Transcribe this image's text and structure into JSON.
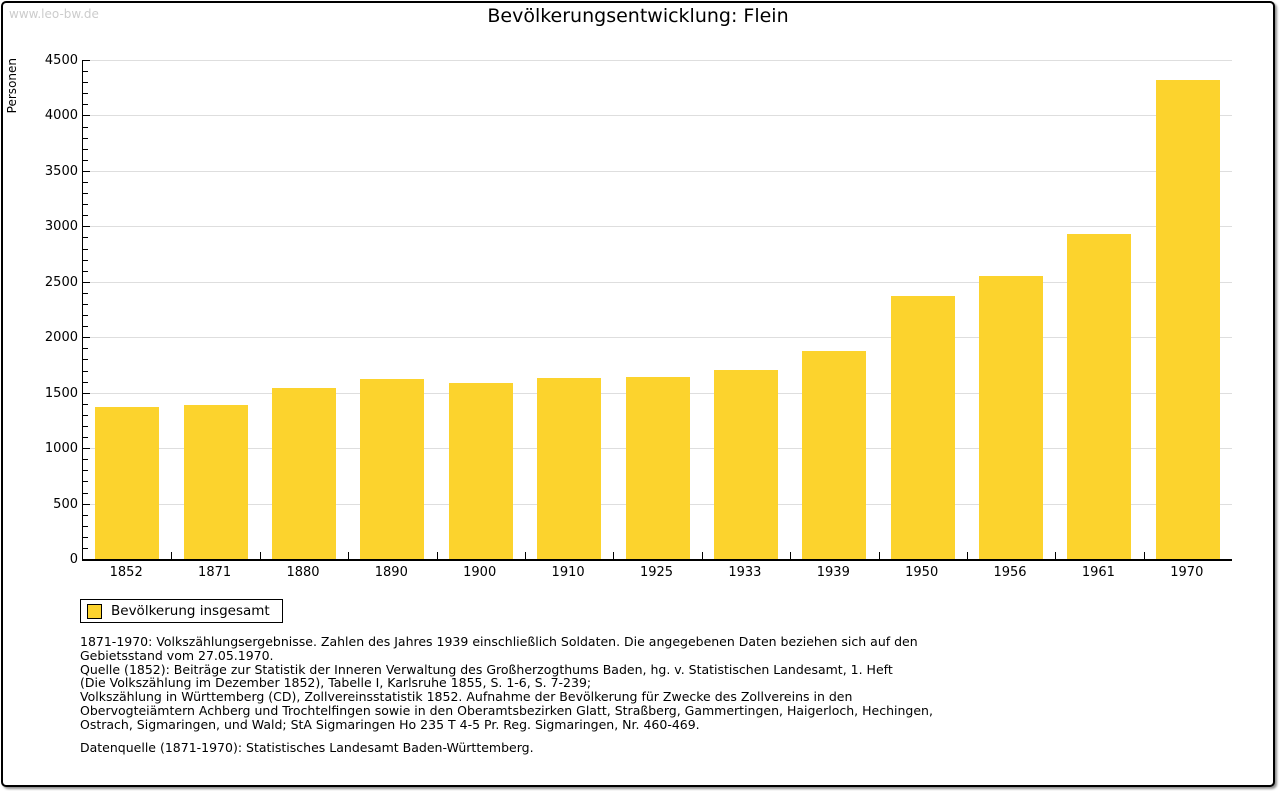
{
  "watermark": "www.leo-bw.de",
  "title": "Bevölkerungsentwicklung: Flein",
  "chart_data": {
    "type": "bar",
    "title": "Bevölkerungsentwicklung: Flein",
    "ylabel": "Personen",
    "xlabel": "",
    "ylim": [
      0,
      4500
    ],
    "ytick_step": 500,
    "y_minor_step": 100,
    "yticks": [
      0,
      500,
      1000,
      1500,
      2000,
      2500,
      3000,
      3500,
      4000,
      4500
    ],
    "grid": "horizontal-major",
    "legend_position": "bottom-left",
    "bar_color": "#FCD32D",
    "categories": [
      "1852",
      "1871",
      "1880",
      "1890",
      "1900",
      "1910",
      "1925",
      "1933",
      "1939",
      "1950",
      "1956",
      "1961",
      "1970"
    ],
    "series": [
      {
        "name": "Bevölkerung insgesamt",
        "values": [
          1373,
          1390,
          1545,
          1625,
          1589,
          1632,
          1642,
          1707,
          1875,
          2371,
          2556,
          2934,
          4322
        ]
      }
    ]
  },
  "legend": {
    "label": "Bevölkerung insgesamt"
  },
  "footnotes": {
    "block1": [
      "1871-1970: Volkszählungsergebnisse. Zahlen des Jahres 1939 einschließlich Soldaten. Die angegebenen Daten beziehen sich auf den",
      "Gebietsstand vom 27.05.1970.",
      "Quelle (1852): Beiträge zur Statistik der Inneren Verwaltung des Großherzogthums Baden, hg. v. Statistischen Landesamt, 1. Heft",
      "(Die Volkszählung im Dezember 1852), Tabelle I, Karlsruhe 1855, S. 1-6, S. 7-239;",
      "Volkszählung in Württemberg (CD), Zollvereinsstatistik 1852. Aufnahme der Bevölkerung für Zwecke des Zollvereins in den",
      "Obervogteiämtern Achberg und Trochtelfingen sowie in den Oberamtsbezirken Glatt, Straßberg, Gammertingen, Haigerloch, Hechingen,",
      "Ostrach, Sigmaringen, und Wald; StA Sigmaringen Ho 235 T 4-5 Pr. Reg. Sigmaringen, Nr. 460-469."
    ],
    "block2": "Datenquelle (1871-1970): Statistisches Landesamt Baden-Württemberg."
  },
  "colors": {
    "bar": "#FCD32D",
    "grid": "#DEDEDE",
    "axis": "#000000",
    "watermark": "#CCCCCC",
    "text": "#000000"
  }
}
